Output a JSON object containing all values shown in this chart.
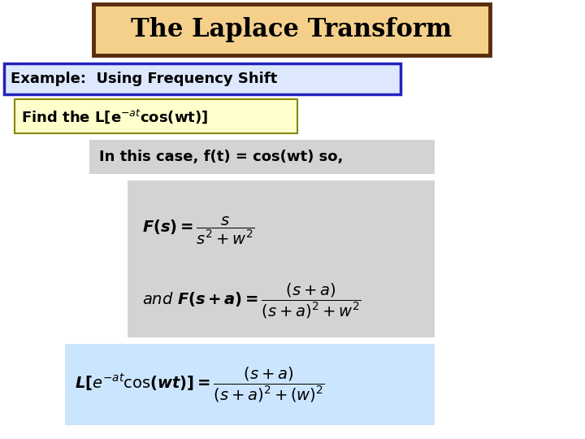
{
  "title": "The Laplace Transform",
  "title_bg": "#f5d08b",
  "title_border": "#5a2d0c",
  "subtitle": "Example:  Using Frequency Shift",
  "subtitle_bg": "#dde8ff",
  "subtitle_border": "#2222bb",
  "find_bg": "#ffffcc",
  "find_border": "#888800",
  "case_bg": "#d3d3d3",
  "formula1_bg": "#d3d3d3",
  "formula2_bg": "#cce5ff",
  "bg_color": "#ffffff"
}
